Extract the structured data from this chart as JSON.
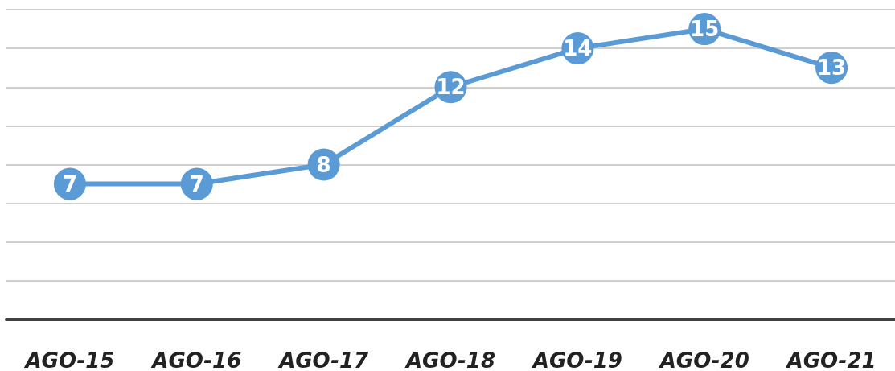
{
  "chart_data": {
    "type": "line",
    "categories": [
      "AGO-15",
      "AGO-16",
      "AGO-17",
      "AGO-18",
      "AGO-19",
      "AGO-20",
      "AGO-21"
    ],
    "values": [
      7,
      7,
      8,
      12,
      14,
      15,
      13
    ],
    "color": "#5b9bd5",
    "ylim": [
      0,
      16
    ],
    "yticks": [
      {
        "value": 0,
        "label": null
      },
      {
        "value": 2,
        "label": null
      },
      {
        "value": 4,
        "label": null
      },
      {
        "value": 6,
        "label": null
      },
      {
        "value": 8,
        "label": null
      },
      {
        "value": 10,
        "label": null
      },
      {
        "value": 12,
        "label": null
      },
      {
        "value": 14,
        "label": null
      },
      {
        "value": 16,
        "label": null
      }
    ],
    "grid": "y",
    "tick_labels": "x",
    "data_labels": true,
    "marker": "circle",
    "line_style": "solid"
  }
}
